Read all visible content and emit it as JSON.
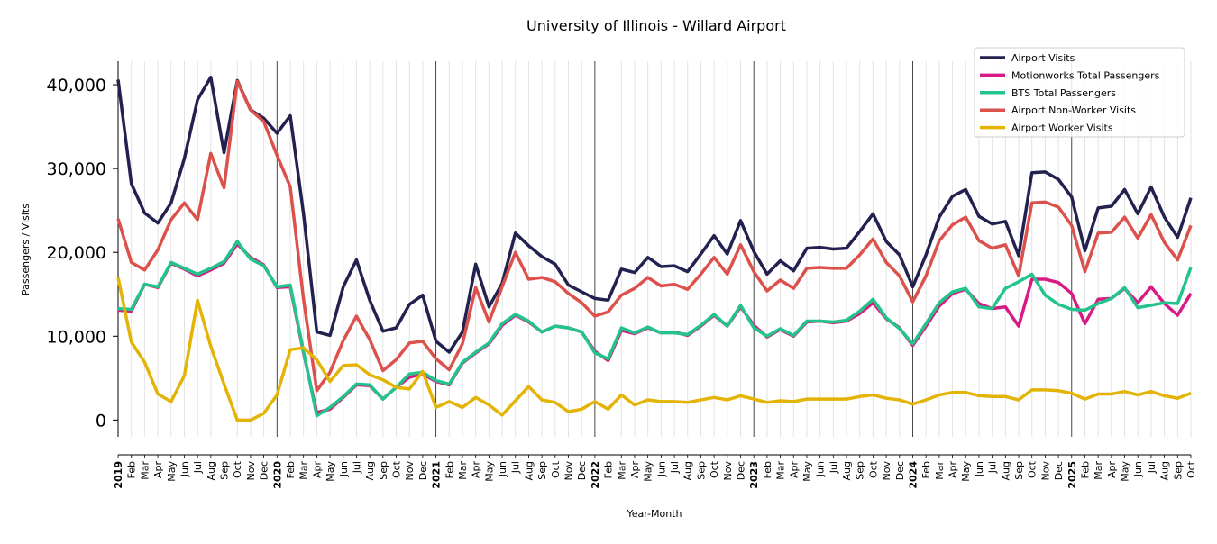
{
  "chart_data": {
    "type": "line",
    "title": "University of Illinois - Willard Airport",
    "xlabel": "Year-Month",
    "ylabel": "Passengers / Visits",
    "ylim": [
      -2000,
      42800
    ],
    "yticks": [
      0,
      10000,
      20000,
      30000,
      40000
    ],
    "ytick_labels": [
      "0",
      "10,000",
      "20,000",
      "30,000",
      "40,000"
    ],
    "years": [
      "2019",
      "2020",
      "2021",
      "2022",
      "2023",
      "2024",
      "2025"
    ],
    "month_abbrevs": [
      "Jan",
      "Feb",
      "Mar",
      "Apr",
      "May",
      "Jun",
      "Jul",
      "Aug",
      "Sep",
      "Oct",
      "Nov",
      "Dec"
    ],
    "x_start": "2019-01",
    "x_end": "2025-10",
    "grid": "vertical monthly, bold at year start",
    "legend_position": "top-right",
    "series": [
      {
        "name": "Airport Visits",
        "color": "#22214f",
        "values": [
          40600,
          28200,
          24700,
          23500,
          25900,
          31200,
          38200,
          40900,
          31900,
          40500,
          37000,
          36000,
          34200,
          36300,
          24600,
          10500,
          10100,
          15900,
          19100,
          14300,
          10600,
          11000,
          13800,
          14900,
          9400,
          8100,
          10500,
          18600,
          13500,
          16300,
          22300,
          20800,
          19500,
          18600,
          16100,
          15300,
          14500,
          14300,
          18000,
          17600,
          19400,
          18300,
          18400,
          17700,
          19800,
          22000,
          19800,
          23800,
          20100,
          17400,
          19000,
          17800,
          20500,
          20600,
          20400,
          20500,
          22500,
          24600,
          21300,
          19700,
          15900,
          19700,
          24200,
          26700,
          27500,
          24300,
          23400,
          23700,
          19600,
          29500,
          29600,
          28700,
          26600,
          20200,
          25300,
          25500,
          27500,
          24600,
          27800,
          24200,
          21800,
          26500
        ]
      },
      {
        "name": "Motionworks Total Passengers",
        "color": "#d81b84",
        "values": [
          13100,
          13000,
          16200,
          15800,
          18700,
          18000,
          17200,
          17900,
          18700,
          21000,
          19400,
          18500,
          15800,
          15900,
          8000,
          900,
          1300,
          2700,
          4200,
          4100,
          2500,
          3900,
          5100,
          5500,
          4600,
          4200,
          6800,
          8000,
          9100,
          11300,
          12500,
          11700,
          10500,
          11200,
          11000,
          10500,
          8200,
          7100,
          10700,
          10300,
          11000,
          10400,
          10500,
          10100,
          11200,
          12500,
          11200,
          13500,
          11300,
          9900,
          10800,
          10000,
          11700,
          11800,
          11600,
          11800,
          12700,
          14000,
          12100,
          11000,
          8900,
          11200,
          13600,
          15100,
          15600,
          13900,
          13300,
          13500,
          11200,
          16800,
          16800,
          16400,
          15100,
          11500,
          14400,
          14500,
          15700,
          14000,
          15900,
          13900,
          12500,
          15100
        ]
      },
      {
        "name": "BTS Total Passengers",
        "color": "#23c48c",
        "values": [
          13300,
          13200,
          16200,
          15900,
          18800,
          18100,
          17400,
          18100,
          18900,
          21300,
          19200,
          18400,
          15900,
          16100,
          8200,
          500,
          1500,
          2800,
          4300,
          4200,
          2500,
          3900,
          5500,
          5700,
          4700,
          4300,
          6900,
          8100,
          9200,
          11500,
          12600,
          11800,
          10500,
          11200,
          11000,
          10500,
          8000,
          7300,
          11000,
          10400,
          11100,
          10400,
          10400,
          10200,
          11300,
          12600,
          11200,
          13700,
          11000,
          10000,
          10900,
          10100,
          11800,
          11800,
          11700,
          11900,
          13000,
          14400,
          12200,
          10900,
          9100,
          11500,
          14000,
          15300,
          15700,
          13500,
          13300,
          15700,
          16500,
          17400,
          14900,
          13800,
          13200,
          13100,
          13900,
          14500,
          15800,
          13400,
          13700,
          14000,
          13900,
          18200
        ]
      },
      {
        "name": "Airport Non-Worker Visits",
        "color": "#dc514b",
        "values": [
          24000,
          18800,
          17900,
          20300,
          23900,
          25900,
          23900,
          31800,
          27700,
          40400,
          37000,
          35600,
          31600,
          27800,
          14400,
          3500,
          5700,
          9500,
          12400,
          9600,
          5900,
          7200,
          9200,
          9400,
          7300,
          6000,
          9100,
          15800,
          11700,
          15900,
          20000,
          16800,
          17000,
          16500,
          15100,
          14000,
          12400,
          12900,
          14900,
          15700,
          17000,
          16000,
          16200,
          15600,
          17400,
          19400,
          17400,
          20900,
          17700,
          15400,
          16700,
          15700,
          18100,
          18200,
          18100,
          18100,
          19700,
          21600,
          18800,
          17200,
          14100,
          17200,
          21400,
          23300,
          24200,
          21400,
          20500,
          20900,
          17200,
          25900,
          26000,
          25400,
          23200,
          17700,
          22300,
          22400,
          24200,
          21700,
          24500,
          21200,
          19100,
          23200
        ]
      },
      {
        "name": "Airport Worker Visits",
        "color": "#e3b405",
        "values": [
          17000,
          9300,
          6900,
          3100,
          2200,
          5300,
          14300,
          8800,
          4300,
          0,
          0,
          800,
          3000,
          8400,
          8600,
          7200,
          4600,
          6500,
          6600,
          5400,
          4800,
          3900,
          3700,
          5800,
          1500,
          2200,
          1500,
          2700,
          1800,
          600,
          2300,
          4000,
          2400,
          2100,
          1000,
          1300,
          2200,
          1300,
          3000,
          1800,
          2400,
          2200,
          2200,
          2100,
          2400,
          2700,
          2400,
          2900,
          2500,
          2100,
          2300,
          2200,
          2500,
          2500,
          2500,
          2500,
          2800,
          3000,
          2600,
          2400,
          1900,
          2400,
          3000,
          3300,
          3300,
          2900,
          2800,
          2800,
          2400,
          3600,
          3600,
          3500,
          3200,
          2500,
          3100,
          3100,
          3400,
          3000,
          3400,
          2900,
          2600,
          3200
        ]
      }
    ]
  }
}
